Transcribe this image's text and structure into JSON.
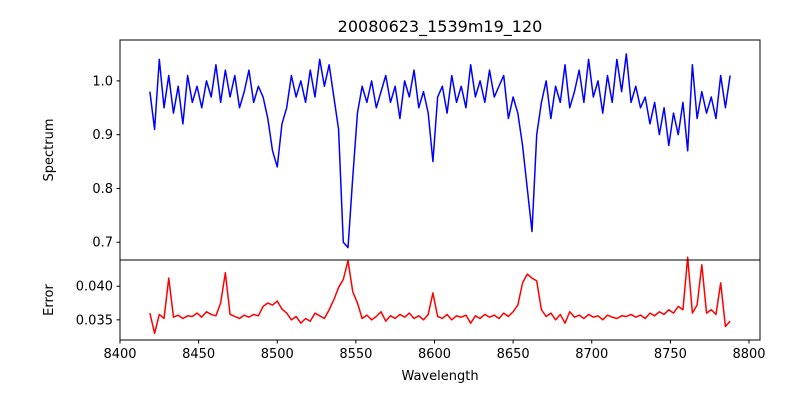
{
  "chart_data": [
    {
      "type": "line",
      "title": "20080623_1539m19_120",
      "xlabel": "",
      "ylabel": "Spectrum",
      "xlim": [
        8400,
        8807
      ],
      "ylim": [
        0.667,
        1.076
      ],
      "yticks": [
        0.7,
        0.8,
        0.9,
        1.0
      ],
      "ytick_labels": [
        "0.7",
        "0.8",
        "0.9",
        "1.0"
      ],
      "color": "#0000ff",
      "x_start": 8419,
      "x_step": 3,
      "values": [
        0.98,
        0.91,
        1.04,
        0.95,
        1.01,
        0.94,
        0.99,
        0.92,
        1.01,
        0.96,
        0.99,
        0.95,
        1.0,
        0.97,
        1.03,
        0.96,
        1.02,
        0.97,
        1.01,
        0.95,
        0.98,
        1.02,
        0.96,
        0.99,
        0.97,
        0.93,
        0.87,
        0.84,
        0.92,
        0.95,
        1.01,
        0.97,
        1.0,
        0.96,
        1.02,
        0.97,
        1.04,
        0.99,
        1.03,
        0.97,
        0.91,
        0.7,
        0.69,
        0.82,
        0.94,
        0.99,
        0.96,
        1.0,
        0.95,
        0.98,
        1.01,
        0.96,
        0.99,
        0.93,
        1.0,
        0.97,
        1.02,
        0.95,
        0.98,
        0.94,
        0.85,
        0.97,
        0.99,
        0.94,
        1.01,
        0.96,
        0.99,
        0.95,
        1.03,
        0.97,
        1.0,
        0.96,
        1.02,
        0.97,
        0.99,
        1.01,
        0.93,
        0.97,
        0.94,
        0.88,
        0.8,
        0.72,
        0.9,
        0.96,
        1.0,
        0.93,
        0.99,
        0.96,
        1.03,
        0.95,
        0.98,
        1.02,
        0.96,
        1.04,
        0.97,
        1.0,
        0.94,
        1.01,
        0.96,
        1.04,
        0.98,
        1.05,
        0.96,
        0.99,
        0.95,
        0.97,
        0.92,
        0.96,
        0.9,
        0.95,
        0.88,
        0.94,
        0.9,
        0.96,
        0.87,
        1.03,
        0.93,
        0.98,
        0.94,
        0.97,
        0.93,
        1.01,
        0.95,
        1.01
      ]
    },
    {
      "type": "line",
      "title": "",
      "xlabel": "Wavelength",
      "ylabel": "Error",
      "xlim": [
        8400,
        8807
      ],
      "ylim": [
        0.032,
        0.0439
      ],
      "xticks": [
        8400,
        8450,
        8500,
        8550,
        8600,
        8650,
        8700,
        8750,
        8800
      ],
      "xtick_labels": [
        "8400",
        "8450",
        "8500",
        "8550",
        "8600",
        "8650",
        "8700",
        "8750",
        "8800"
      ],
      "yticks": [
        0.035,
        0.04
      ],
      "ytick_labels": [
        "0.035",
        "0.040"
      ],
      "color": "#ff0000",
      "x_start": 8419,
      "x_step": 3,
      "values": [
        0.036,
        0.033,
        0.0358,
        0.0352,
        0.0412,
        0.0354,
        0.0357,
        0.0352,
        0.0356,
        0.0355,
        0.036,
        0.0354,
        0.0362,
        0.0358,
        0.0356,
        0.0375,
        0.042,
        0.0358,
        0.0355,
        0.0352,
        0.0357,
        0.0354,
        0.0358,
        0.0356,
        0.037,
        0.0375,
        0.0372,
        0.0378,
        0.0366,
        0.036,
        0.035,
        0.0355,
        0.0345,
        0.0352,
        0.0348,
        0.036,
        0.0356,
        0.0352,
        0.0365,
        0.038,
        0.0398,
        0.041,
        0.0438,
        0.0392,
        0.0375,
        0.0352,
        0.0357,
        0.035,
        0.0355,
        0.0362,
        0.0348,
        0.0356,
        0.0352,
        0.0358,
        0.0354,
        0.036,
        0.0352,
        0.0356,
        0.035,
        0.0358,
        0.039,
        0.0355,
        0.0352,
        0.0358,
        0.035,
        0.0356,
        0.0354,
        0.0357,
        0.0345,
        0.0356,
        0.0352,
        0.0358,
        0.0354,
        0.0357,
        0.0352,
        0.036,
        0.0355,
        0.0362,
        0.0372,
        0.0405,
        0.0418,
        0.0412,
        0.0408,
        0.0365,
        0.0355,
        0.036,
        0.035,
        0.0358,
        0.0345,
        0.0362,
        0.0354,
        0.0357,
        0.0352,
        0.0358,
        0.0354,
        0.0356,
        0.035,
        0.0357,
        0.0354,
        0.0352,
        0.0356,
        0.0355,
        0.0358,
        0.0354,
        0.0357,
        0.0352,
        0.036,
        0.0356,
        0.0362,
        0.0358,
        0.0365,
        0.036,
        0.037,
        0.0365,
        0.0443,
        0.036,
        0.0372,
        0.0432,
        0.036,
        0.0365,
        0.0358,
        0.0405,
        0.034,
        0.0348
      ]
    }
  ]
}
